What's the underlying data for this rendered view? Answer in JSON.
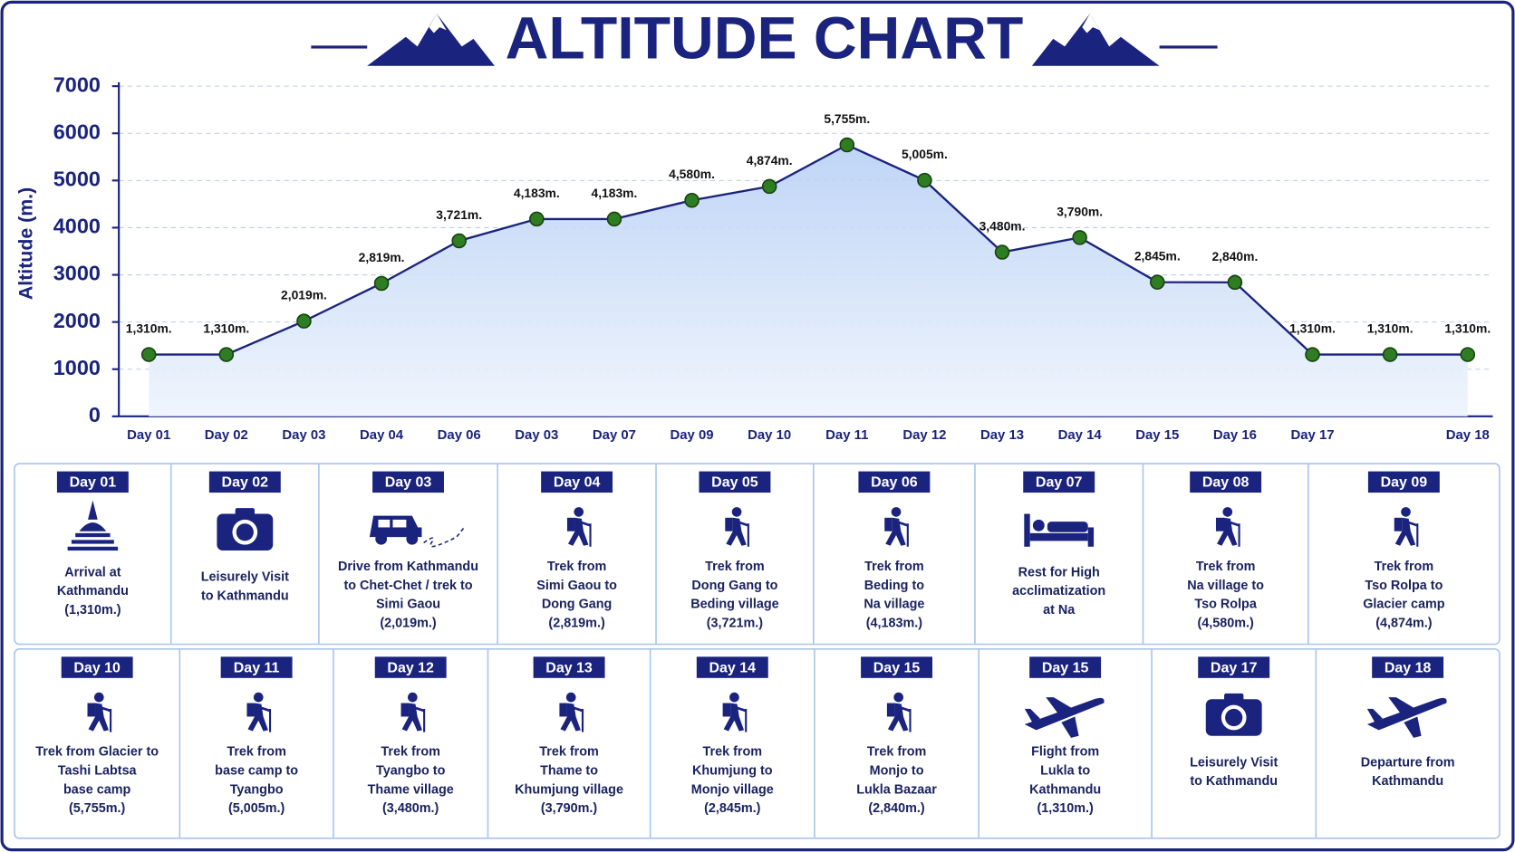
{
  "chart_data": {
    "type": "line",
    "title": "ALTITUDE CHART",
    "y_label": "Altitude (m.)",
    "categories": [
      "Day 01",
      "Day 02",
      "Day 03",
      "Day 04",
      "Day 06",
      "Day 03",
      "Day 07",
      "Day 09",
      "Day 10",
      "Day 11",
      "Day 12",
      "Day 13",
      "Day 14",
      "Day 15",
      "Day 16",
      "Day 17",
      null,
      "Day 18"
    ],
    "values": [
      1310,
      1310,
      2019,
      2819,
      3721,
      4183,
      4183,
      4580,
      4874,
      5755,
      5005,
      3480,
      3790,
      2845,
      2840,
      1310,
      1310,
      1310
    ],
    "value_labels": [
      "1,310m.",
      "1,310m.",
      "2,019m.",
      "2,819m.",
      "3,721m.",
      "4,183m.",
      "4,183m.",
      "4,580m.",
      "4,874m.",
      "5,755m.",
      "5,005m.",
      "3,480m.",
      "3,790m.",
      "2,845m.",
      "2,840m.",
      "1,310m.",
      "1,310m.",
      "1,310m."
    ],
    "color": "#1a237e",
    "marker_color": "#2e7d22",
    "ylim": [
      0,
      7000
    ],
    "yticks": [
      0,
      1000,
      2000,
      3000,
      4000,
      5000,
      6000,
      7000
    ],
    "grid": true
  },
  "itinerary": [
    [
      {
        "day": "Day 01",
        "lines": [
          "Arrival at",
          "Kathmandu",
          "(1,310m.)"
        ]
      },
      {
        "day": "Day 02",
        "lines": [
          "Leisurely Visit",
          "to Kathmandu"
        ]
      },
      {
        "day": "Day 03",
        "lines": [
          "Drive from Kathmandu",
          "to Chet-Chet / trek to",
          "Simi Gaou",
          "(2,019m.)"
        ]
      },
      {
        "day": "Day 04",
        "lines": [
          "Trek from",
          "Simi Gaou to",
          "Dong Gang",
          "(2,819m.)"
        ]
      },
      {
        "day": "Day 05",
        "lines": [
          "Trek from",
          "Dong Gang to",
          "Beding village",
          "(3,721m.)"
        ]
      },
      {
        "day": "Day 06",
        "lines": [
          "Trek from",
          "Beding to",
          "Na village",
          "(4,183m.)"
        ]
      },
      {
        "day": "Day 07",
        "lines": [
          "Rest for High",
          "acclimatization",
          "at Na"
        ]
      },
      {
        "day": "Day 08",
        "lines": [
          "Trek from",
          "Na village to",
          "Tso Rolpa",
          "(4,580m.)"
        ]
      },
      {
        "day": "Day 09",
        "lines": [
          "Trek from",
          "Tso Rolpa to",
          "Glacier camp",
          "(4,874m.)"
        ]
      }
    ],
    [
      {
        "day": "Day 10",
        "lines": [
          "Trek from Glacier to",
          "Tashi Labtsa",
          "base camp",
          "(5,755m.)"
        ]
      },
      {
        "day": "Day 11",
        "lines": [
          "Trek from",
          "base camp to",
          "Tyangbo",
          "(5,005m.)"
        ]
      },
      {
        "day": "Day 12",
        "lines": [
          "Trek from",
          "Tyangbo to",
          "Thame village",
          "(3,480m.)"
        ]
      },
      {
        "day": "Day 13",
        "lines": [
          "Trek from",
          "Thame to",
          "Khumjung village",
          "(3,790m.)"
        ]
      },
      {
        "day": "Day 14",
        "lines": [
          "Trek from",
          "Khumjung to",
          "Monjo village",
          "(2,845m.)"
        ]
      },
      {
        "day": "Day 15",
        "lines": [
          "Trek from",
          "Monjo to",
          "Lukla Bazaar",
          "(2,840m.)"
        ]
      },
      {
        "day": "Day 15",
        "lines": [
          "Flight from",
          "Lukla to",
          "Kathmandu",
          "(1,310m.)"
        ]
      },
      {
        "day": "Day 17",
        "lines": [
          "Leisurely Visit",
          "to Kathmandu"
        ]
      },
      {
        "day": "Day 18",
        "lines": [
          "Departure from",
          "Kathmandu"
        ]
      }
    ]
  ]
}
